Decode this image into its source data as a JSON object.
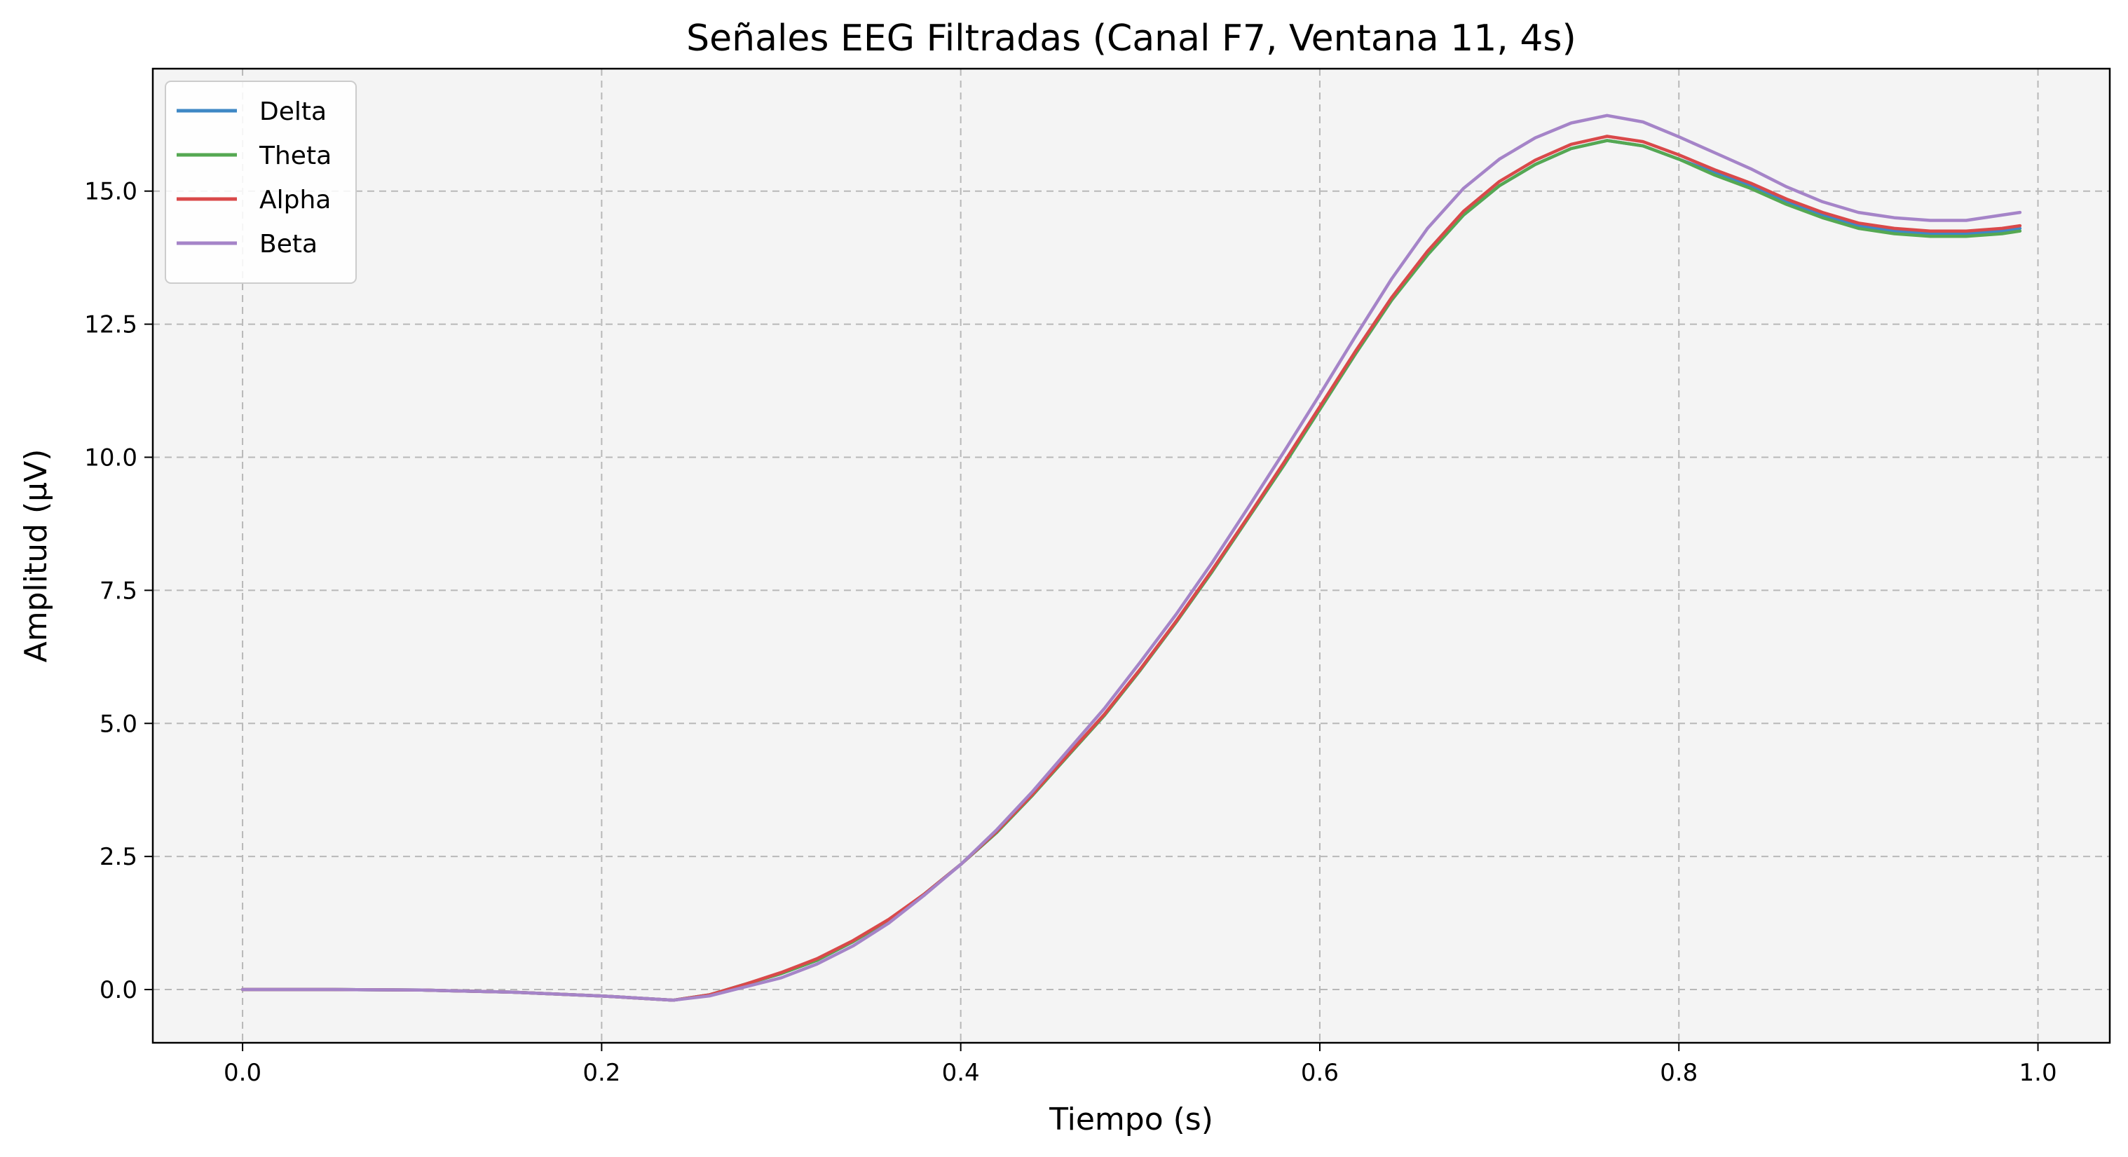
{
  "chart_data": {
    "type": "line",
    "title": "Señales EEG Filtradas (Canal F7, Ventana 11, 4s)",
    "xlabel": "Tiempo (s)",
    "ylabel": "Amplitud (µV)",
    "xlim": [
      -0.05,
      1.04
    ],
    "ylim": [
      -1.0,
      17.3
    ],
    "xticks": [
      0.0,
      0.2,
      0.4,
      0.6,
      0.8,
      1.0
    ],
    "xtick_labels": [
      "0.0",
      "0.2",
      "0.4",
      "0.6",
      "0.8",
      "1.0"
    ],
    "yticks": [
      0.0,
      2.5,
      5.0,
      7.5,
      10.0,
      12.5,
      15.0
    ],
    "ytick_labels": [
      "0.0",
      "2.5",
      "5.0",
      "7.5",
      "10.0",
      "12.5",
      "15.0"
    ],
    "grid": true,
    "legend_position": "top-left",
    "background": "#f4f4f4",
    "x": [
      0.0,
      0.05,
      0.1,
      0.15,
      0.2,
      0.22,
      0.24,
      0.26,
      0.28,
      0.3,
      0.32,
      0.34,
      0.36,
      0.38,
      0.4,
      0.42,
      0.44,
      0.46,
      0.48,
      0.5,
      0.52,
      0.54,
      0.56,
      0.58,
      0.6,
      0.62,
      0.64,
      0.66,
      0.68,
      0.7,
      0.72,
      0.74,
      0.76,
      0.78,
      0.8,
      0.82,
      0.84,
      0.86,
      0.88,
      0.9,
      0.92,
      0.94,
      0.96,
      0.98,
      0.99
    ],
    "series": [
      {
        "name": "Delta",
        "color": "#3f88c5",
        "values": [
          0.0,
          0.0,
          -0.01,
          -0.05,
          -0.12,
          -0.16,
          -0.2,
          -0.1,
          0.1,
          0.3,
          0.55,
          0.9,
          1.3,
          1.8,
          2.35,
          2.95,
          3.65,
          4.4,
          5.15,
          6.0,
          6.9,
          7.85,
          8.85,
          9.85,
          10.9,
          11.95,
          12.95,
          13.8,
          14.55,
          15.1,
          15.5,
          15.8,
          15.95,
          15.85,
          15.6,
          15.35,
          15.1,
          14.8,
          14.55,
          14.35,
          14.25,
          14.2,
          14.2,
          14.25,
          14.3
        ]
      },
      {
        "name": "Theta",
        "color": "#55a852",
        "values": [
          0.0,
          0.0,
          -0.01,
          -0.05,
          -0.12,
          -0.16,
          -0.2,
          -0.1,
          0.1,
          0.3,
          0.55,
          0.9,
          1.3,
          1.8,
          2.35,
          2.95,
          3.65,
          4.4,
          5.15,
          6.0,
          6.9,
          7.85,
          8.85,
          9.85,
          10.9,
          11.95,
          12.95,
          13.8,
          14.55,
          15.1,
          15.5,
          15.8,
          15.95,
          15.85,
          15.6,
          15.3,
          15.05,
          14.75,
          14.5,
          14.3,
          14.2,
          14.15,
          14.15,
          14.2,
          14.25
        ]
      },
      {
        "name": "Alpha",
        "color": "#d9494a",
        "values": [
          0.0,
          0.0,
          -0.01,
          -0.05,
          -0.12,
          -0.16,
          -0.2,
          -0.1,
          0.1,
          0.32,
          0.58,
          0.92,
          1.32,
          1.8,
          2.35,
          2.97,
          3.67,
          4.42,
          5.17,
          6.02,
          6.92,
          7.88,
          8.88,
          9.9,
          10.95,
          12.0,
          13.0,
          13.87,
          14.62,
          15.18,
          15.58,
          15.88,
          16.03,
          15.93,
          15.68,
          15.4,
          15.15,
          14.85,
          14.6,
          14.4,
          14.3,
          14.25,
          14.25,
          14.3,
          14.35
        ]
      },
      {
        "name": "Beta",
        "color": "#a584c8",
        "values": [
          0.0,
          0.0,
          -0.01,
          -0.05,
          -0.12,
          -0.16,
          -0.2,
          -0.12,
          0.05,
          0.22,
          0.48,
          0.82,
          1.25,
          1.78,
          2.35,
          3.0,
          3.72,
          4.5,
          5.28,
          6.15,
          7.05,
          8.02,
          9.05,
          10.1,
          11.18,
          12.28,
          13.35,
          14.3,
          15.05,
          15.6,
          16.0,
          16.28,
          16.42,
          16.3,
          16.02,
          15.72,
          15.42,
          15.08,
          14.8,
          14.6,
          14.5,
          14.45,
          14.45,
          14.55,
          14.6
        ]
      }
    ]
  }
}
